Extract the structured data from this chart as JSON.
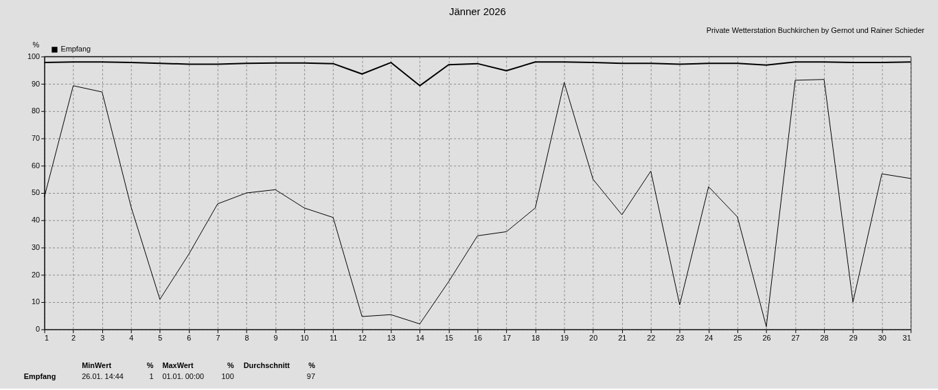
{
  "chart_data": {
    "type": "line",
    "title": "Jänner 2026",
    "ylabel": "%",
    "x": [
      1,
      2,
      3,
      4,
      5,
      6,
      7,
      8,
      9,
      10,
      11,
      12,
      13,
      14,
      15,
      16,
      17,
      18,
      19,
      20,
      21,
      22,
      23,
      24,
      25,
      26,
      27,
      28,
      29,
      30,
      31
    ],
    "series": [
      {
        "name": "Empfang",
        "color": "#000000",
        "values": [
          97.8,
          98,
          98,
          97.8,
          97.5,
          97.2,
          97.2,
          97.5,
          97.6,
          97.6,
          97.4,
          93.6,
          97.8,
          89.3,
          97,
          97.4,
          94.8,
          98,
          98,
          97.8,
          97.5,
          97.5,
          97.2,
          97.5,
          97.5,
          96.9,
          98,
          98,
          97.8,
          97.8,
          98
        ]
      },
      {
        "color": "#000000",
        "values": [
          48.5,
          89.3,
          87,
          45,
          11,
          27.5,
          46,
          50,
          51.2,
          44.5,
          41,
          4.7,
          5.4,
          2,
          17.5,
          34.3,
          35.8,
          44.5,
          90.5,
          55,
          42,
          58,
          9,
          52.3,
          41.2,
          1,
          91.3,
          91.6,
          10,
          57,
          55.3
        ]
      },
      {
        "color": "#000000",
        "values": [
          100,
          100,
          100,
          100,
          100,
          100,
          100,
          100,
          100,
          100,
          100,
          100,
          100,
          100,
          100,
          100,
          100,
          100,
          100,
          100,
          100,
          100,
          100,
          100,
          100,
          100,
          100,
          100,
          100,
          100,
          100
        ]
      }
    ],
    "xlim": [
      1,
      31
    ],
    "xticks": [
      1,
      2,
      3,
      4,
      5,
      6,
      7,
      8,
      9,
      10,
      11,
      12,
      13,
      14,
      15,
      16,
      17,
      18,
      19,
      20,
      21,
      22,
      23,
      24,
      25,
      26,
      27,
      28,
      29,
      30,
      31
    ],
    "ylim": [
      0,
      100
    ],
    "yticks": [
      0,
      10,
      20,
      30,
      40,
      50,
      60,
      70,
      80,
      90,
      100
    ],
    "grid": true,
    "legend": "top left",
    "marker": "none",
    "line_style": "solid",
    "annotations": [
      "Private Wetterstation Buchkirchen by Gernot und Rainer Schieder",
      "Empfang",
      "MinWert",
      "%",
      "26.01. 14:44",
      "1",
      "MaxWert",
      "%",
      "01.01. 00:00",
      "100",
      "Durchschnitt",
      "%",
      "97"
    ]
  }
}
